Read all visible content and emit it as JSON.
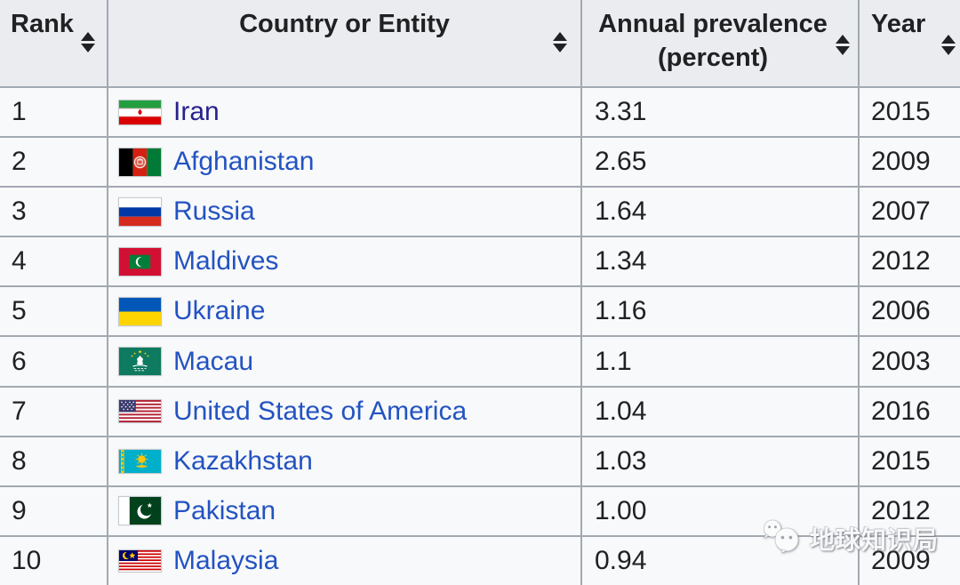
{
  "table": {
    "headers": [
      {
        "label": "Rank"
      },
      {
        "label": "Country or Entity"
      },
      {
        "label": "Annual prevalence (percent)"
      },
      {
        "label": "Year"
      }
    ],
    "rows": [
      {
        "rank": "1",
        "country": "Iran",
        "flag": "iran",
        "prevalence": "3.31",
        "year": "2015",
        "visited": true
      },
      {
        "rank": "2",
        "country": "Afghanistan",
        "flag": "afghanistan",
        "prevalence": "2.65",
        "year": "2009",
        "visited": false
      },
      {
        "rank": "3",
        "country": "Russia",
        "flag": "russia",
        "prevalence": "1.64",
        "year": "2007",
        "visited": false
      },
      {
        "rank": "4",
        "country": "Maldives",
        "flag": "maldives",
        "prevalence": "1.34",
        "year": "2012",
        "visited": false
      },
      {
        "rank": "5",
        "country": "Ukraine",
        "flag": "ukraine",
        "prevalence": "1.16",
        "year": "2006",
        "visited": false
      },
      {
        "rank": "6",
        "country": "Macau",
        "flag": "macau",
        "prevalence": "1.1",
        "year": "2003",
        "visited": false
      },
      {
        "rank": "7",
        "country": "United States of America",
        "flag": "usa",
        "prevalence": "1.04",
        "year": "2016",
        "visited": false
      },
      {
        "rank": "8",
        "country": "Kazakhstan",
        "flag": "kazakhstan",
        "prevalence": "1.03",
        "year": "2015",
        "visited": false
      },
      {
        "rank": "9",
        "country": "Pakistan",
        "flag": "pakistan",
        "prevalence": "1.00",
        "year": "2012",
        "visited": false
      },
      {
        "rank": "10",
        "country": "Malaysia",
        "flag": "malaysia",
        "prevalence": "0.94",
        "year": "2009",
        "visited": false
      }
    ]
  },
  "watermark": {
    "text": "地球知识局",
    "icon": "wechat-logo"
  },
  "colors": {
    "header_bg": "#eaecf0",
    "row_bg": "#f8f9fa",
    "border": "#a2a9b1",
    "link": "#2353c2",
    "link_visited": "#27218e",
    "text": "#202122"
  },
  "chart_data": {
    "type": "table",
    "columns": [
      "Rank",
      "Country or Entity",
      "Annual prevalence (percent)",
      "Year"
    ],
    "rows": [
      [
        1,
        "Iran",
        3.31,
        2015
      ],
      [
        2,
        "Afghanistan",
        2.65,
        2009
      ],
      [
        3,
        "Russia",
        1.64,
        2007
      ],
      [
        4,
        "Maldives",
        1.34,
        2012
      ],
      [
        5,
        "Ukraine",
        1.16,
        2006
      ],
      [
        6,
        "Macau",
        1.1,
        2003
      ],
      [
        7,
        "United States of America",
        1.04,
        2016
      ],
      [
        8,
        "Kazakhstan",
        1.03,
        2015
      ],
      [
        9,
        "Pakistan",
        1.0,
        2012
      ],
      [
        10,
        "Malaysia",
        0.94,
        2009
      ]
    ]
  }
}
